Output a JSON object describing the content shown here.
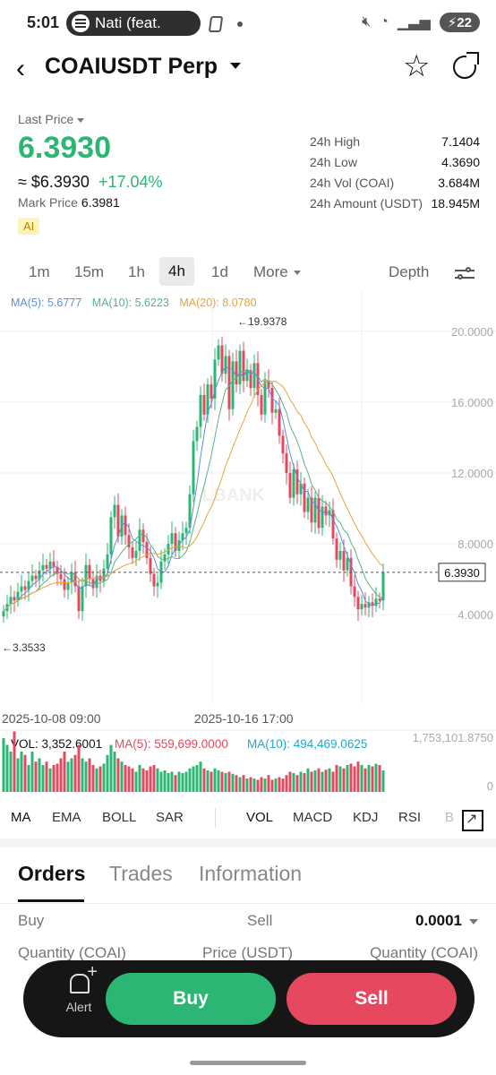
{
  "status": {
    "time": "5:01",
    "media": "Nati (feat.",
    "battery": "22"
  },
  "header": {
    "pair": "COAIUSDT Perp"
  },
  "ticker": {
    "last_price_label": "Last Price",
    "last_price": "6.3930",
    "usd_price": "≈ $6.3930",
    "change": "+17.04%",
    "mark_label": "Mark Price",
    "mark_value": "6.3981",
    "ai_badge": "AI"
  },
  "stats": [
    {
      "k": "24h High",
      "v": "7.1404"
    },
    {
      "k": "24h Low",
      "v": "4.3690"
    },
    {
      "k": "24h Vol (COAI)",
      "v": "3.684M"
    },
    {
      "k": "24h Amount (USDT)",
      "v": "18.945M"
    }
  ],
  "timeframes": [
    "1m",
    "15m",
    "1h",
    "4h",
    "1d",
    "More"
  ],
  "active_timeframe": "4h",
  "depth_label": "Depth",
  "ma_legend": {
    "ma5": "MA(5): 5.6777",
    "ma10": "MA(10): 5.6223",
    "ma20": "MA(20): 8.0780"
  },
  "vol_legend": {
    "vol": "VOL: 3,352.6001",
    "ma5": "MA(5): 559,699.0000",
    "ma10": "MA(10): 494,469.0625"
  },
  "chart_data": {
    "type": "candlestick",
    "y_ticks": [
      "20.0000",
      "16.0000",
      "12.0000",
      "8.0000",
      "4.0000"
    ],
    "ylim": [
      -1,
      21
    ],
    "x_labels": [
      "2025-10-08 09:00",
      "2025-10-16 17:00"
    ],
    "current_price_label": "6.3930",
    "high_marker": "←19.9378",
    "low_marker": "←3.3533",
    "watermark": "LBANK",
    "vol_axis_top": "1,753,101.8750",
    "vol_axis_bottom": "0",
    "closes": [
      4.2,
      4.6,
      5.0,
      4.8,
      5.3,
      5.6,
      5.4,
      5.9,
      6.2,
      6.0,
      6.5,
      6.8,
      6.6,
      7.0,
      6.7,
      6.3,
      6.0,
      5.4,
      5.8,
      6.4,
      5.6,
      4.2,
      5.6,
      6.8,
      6.0,
      5.5,
      6.2,
      5.9,
      6.6,
      7.4,
      9.5,
      10.2,
      8.4,
      9.6,
      8.5,
      7.8,
      7.2,
      7.6,
      8.8,
      8.1,
      7.2,
      6.3,
      5.6,
      5.8,
      7.0,
      7.4,
      8.0,
      8.6,
      7.6,
      8.2,
      8.6,
      8.9,
      10.8,
      13.8,
      14.6,
      16.4,
      15.3,
      17.0,
      16.2,
      18.4,
      19.2,
      17.6,
      18.6,
      15.6,
      18.3,
      17.0,
      18.9,
      17.2,
      17.8,
      16.8,
      18.2,
      16.4,
      15.3,
      17.2,
      16.8,
      15.4,
      15.6,
      14.1,
      13.1,
      12.0,
      10.6,
      12.2,
      10.8,
      11.4,
      9.8,
      10.6,
      9.2,
      10.6,
      8.9,
      10.1,
      9.6,
      9.9,
      8.3,
      7.1,
      7.6,
      6.5,
      7.2,
      5.6,
      5.0,
      4.3,
      4.6,
      4.4,
      4.7,
      4.5,
      4.9,
      4.8,
      6.39
    ],
    "volumes": [
      0.8,
      0.7,
      0.6,
      0.9,
      0.5,
      0.6,
      0.55,
      0.4,
      0.6,
      0.45,
      0.5,
      0.4,
      0.45,
      0.35,
      0.4,
      0.42,
      0.5,
      0.6,
      0.45,
      0.5,
      0.55,
      0.7,
      0.5,
      0.45,
      0.5,
      0.4,
      0.35,
      0.38,
      0.42,
      0.55,
      0.7,
      0.6,
      0.5,
      0.45,
      0.4,
      0.38,
      0.35,
      0.3,
      0.4,
      0.35,
      0.32,
      0.38,
      0.4,
      0.35,
      0.3,
      0.32,
      0.28,
      0.3,
      0.25,
      0.3,
      0.28,
      0.3,
      0.35,
      0.38,
      0.4,
      0.45,
      0.35,
      0.32,
      0.3,
      0.35,
      0.32,
      0.3,
      0.28,
      0.3,
      0.27,
      0.25,
      0.22,
      0.25,
      0.2,
      0.22,
      0.2,
      0.18,
      0.22,
      0.2,
      0.25,
      0.18,
      0.2,
      0.22,
      0.2,
      0.25,
      0.3,
      0.28,
      0.25,
      0.3,
      0.28,
      0.35,
      0.3,
      0.32,
      0.35,
      0.3,
      0.33,
      0.35,
      0.3,
      0.4,
      0.38,
      0.35,
      0.4,
      0.42,
      0.38,
      0.45,
      0.4,
      0.35,
      0.4,
      0.38,
      0.42,
      0.4,
      0.32
    ]
  },
  "indicators_left": [
    "MA",
    "EMA",
    "BOLL",
    "SAR"
  ],
  "indicators_right": [
    "VOL",
    "MACD",
    "KDJ",
    "RSI",
    "B"
  ],
  "tabs": [
    "Orders",
    "Trades",
    "Information"
  ],
  "orderbook": {
    "buy": "Buy",
    "sell": "Sell",
    "step": "0.0001",
    "qty_left": "Quantity (COAI)",
    "price": "Price (USDT)",
    "qty_right": "Quantity (COAI)"
  },
  "dock": {
    "alert": "Alert",
    "buy": "Buy",
    "sell": "Sell"
  },
  "colors": {
    "up": "#2bb673",
    "down": "#e5485f",
    "ma5": "#5b8fd9",
    "ma10": "#58b383",
    "ma20": "#e8a33a"
  }
}
